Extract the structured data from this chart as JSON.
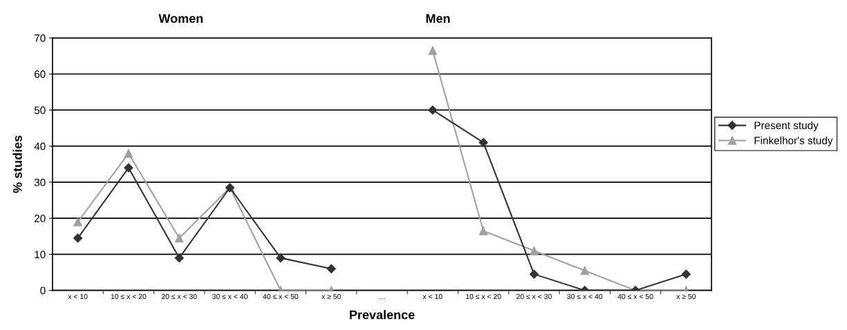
{
  "chart_data": {
    "type": "line",
    "xlabel": "Prevalence",
    "ylabel": "% studies",
    "annotations": [
      "Women",
      "Men"
    ],
    "categories": [
      "x < 10",
      "10 ≤ x < 20",
      "20 ≤ x < 30",
      "30 ≤ x < 40",
      "40 ≤ x < 50",
      "x ≥ 50",
      "...",
      "x < 10",
      "10 ≤ x < 20",
      "20 ≤ x < 30",
      "30 ≤ x < 40",
      "40 ≤ x < 50",
      "x ≥ 50"
    ],
    "series": [
      {
        "name": "Present study",
        "color": "#333333",
        "marker": "diamond",
        "values": [
          14.5,
          34,
          9,
          28.5,
          9,
          6,
          null,
          50,
          41,
          4.5,
          0,
          0,
          4.5
        ]
      },
      {
        "name": "Finkelhor's study",
        "color": "#a0a0a0",
        "marker": "triangle",
        "values": [
          19,
          38,
          14.5,
          28.5,
          0,
          0,
          null,
          66.5,
          16.5,
          11,
          5.5,
          0,
          0
        ]
      }
    ],
    "ylim": [
      0,
      70
    ],
    "yticks": [
      0,
      10,
      20,
      30,
      40,
      50,
      60,
      70
    ],
    "grid": "y",
    "legend": "right",
    "line_style": "solid"
  }
}
